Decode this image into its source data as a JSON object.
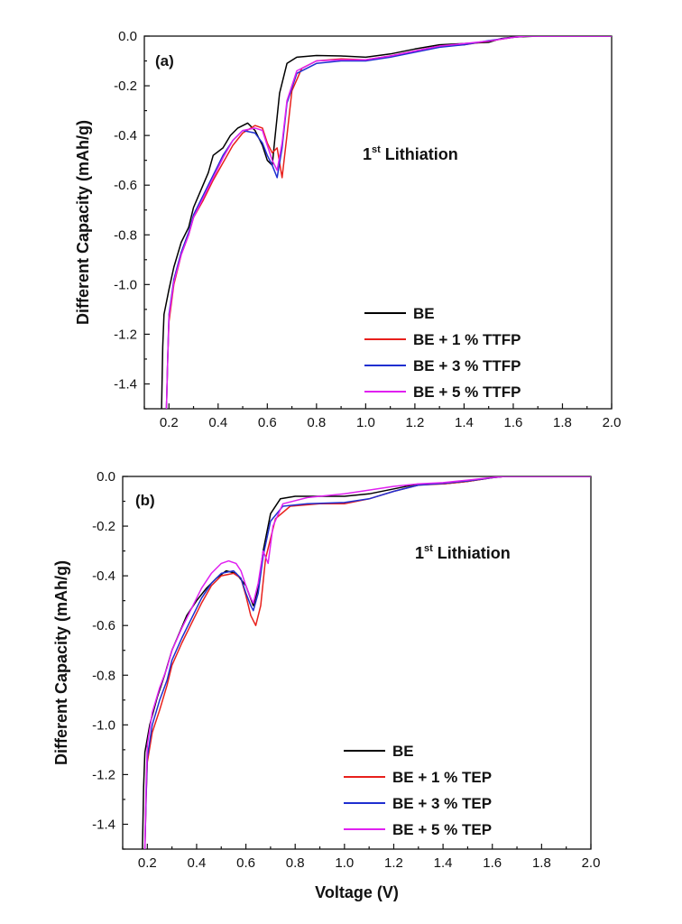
{
  "colors": {
    "BE": "#000000",
    "BE_1": "#e8201c",
    "BE_3": "#1f2fd0",
    "BE_5": "#e020f0"
  },
  "chart_data": [
    {
      "type": "line",
      "panel_label": "(a)",
      "annotation": {
        "main": "1",
        "sup": "st",
        "rest": " Lithiation"
      },
      "xlabel": "",
      "ylabel": "Different Capacity (mAh/g)",
      "xlim": [
        0.1,
        2.0
      ],
      "ylim": [
        -1.5,
        0.0
      ],
      "x_ticks": [
        "0.2",
        "0.4",
        "0.6",
        "0.8",
        "1.0",
        "1.2",
        "1.4",
        "1.6",
        "1.8",
        "2.0"
      ],
      "y_ticks": [
        "0.0",
        "-0.2",
        "-0.4",
        "-0.6",
        "-0.8",
        "-1.0",
        "-1.2",
        "-1.4"
      ],
      "legend_position": "lower-right",
      "series": [
        {
          "name": "BE",
          "color_key": "BE",
          "points": [
            [
              0.17,
              -1.5
            ],
            [
              0.175,
              -1.25
            ],
            [
              0.18,
              -1.12
            ],
            [
              0.2,
              -1.02
            ],
            [
              0.22,
              -0.93
            ],
            [
              0.25,
              -0.83
            ],
            [
              0.28,
              -0.77
            ],
            [
              0.3,
              -0.69
            ],
            [
              0.33,
              -0.62
            ],
            [
              0.36,
              -0.55
            ],
            [
              0.38,
              -0.48
            ],
            [
              0.42,
              -0.45
            ],
            [
              0.45,
              -0.4
            ],
            [
              0.48,
              -0.37
            ],
            [
              0.52,
              -0.35
            ],
            [
              0.55,
              -0.38
            ],
            [
              0.58,
              -0.44
            ],
            [
              0.6,
              -0.5
            ],
            [
              0.62,
              -0.52
            ],
            [
              0.63,
              -0.42
            ],
            [
              0.65,
              -0.23
            ],
            [
              0.68,
              -0.11
            ],
            [
              0.72,
              -0.085
            ],
            [
              0.8,
              -0.078
            ],
            [
              0.9,
              -0.08
            ],
            [
              1.0,
              -0.085
            ],
            [
              1.1,
              -0.072
            ],
            [
              1.2,
              -0.052
            ],
            [
              1.3,
              -0.035
            ],
            [
              1.4,
              -0.03
            ],
            [
              1.5,
              -0.025
            ],
            [
              1.55,
              -0.01
            ],
            [
              1.6,
              -0.004
            ],
            [
              1.7,
              0.0
            ],
            [
              2.0,
              0.0
            ]
          ]
        },
        {
          "name": "BE + 1 % TTFP",
          "color_key": "BE_1",
          "points": [
            [
              0.19,
              -1.5
            ],
            [
              0.195,
              -1.3
            ],
            [
              0.2,
              -1.15
            ],
            [
              0.22,
              -1.0
            ],
            [
              0.25,
              -0.88
            ],
            [
              0.28,
              -0.8
            ],
            [
              0.3,
              -0.73
            ],
            [
              0.34,
              -0.66
            ],
            [
              0.38,
              -0.58
            ],
            [
              0.42,
              -0.51
            ],
            [
              0.46,
              -0.44
            ],
            [
              0.5,
              -0.39
            ],
            [
              0.55,
              -0.36
            ],
            [
              0.58,
              -0.37
            ],
            [
              0.6,
              -0.43
            ],
            [
              0.62,
              -0.47
            ],
            [
              0.64,
              -0.45
            ],
            [
              0.66,
              -0.57
            ],
            [
              0.68,
              -0.4
            ],
            [
              0.7,
              -0.22
            ],
            [
              0.74,
              -0.13
            ],
            [
              0.8,
              -0.1
            ],
            [
              0.9,
              -0.092
            ],
            [
              1.0,
              -0.095
            ],
            [
              1.1,
              -0.08
            ],
            [
              1.2,
              -0.06
            ],
            [
              1.3,
              -0.04
            ],
            [
              1.4,
              -0.035
            ],
            [
              1.5,
              -0.02
            ],
            [
              1.6,
              -0.005
            ],
            [
              1.65,
              0.0
            ],
            [
              2.0,
              0.0
            ]
          ]
        },
        {
          "name": "BE + 3 % TTFP",
          "color_key": "BE_3",
          "points": [
            [
              0.19,
              -1.5
            ],
            [
              0.195,
              -1.3
            ],
            [
              0.2,
              -1.12
            ],
            [
              0.22,
              -0.98
            ],
            [
              0.25,
              -0.87
            ],
            [
              0.28,
              -0.79
            ],
            [
              0.3,
              -0.72
            ],
            [
              0.34,
              -0.64
            ],
            [
              0.38,
              -0.56
            ],
            [
              0.42,
              -0.48
            ],
            [
              0.46,
              -0.42
            ],
            [
              0.5,
              -0.38
            ],
            [
              0.55,
              -0.39
            ],
            [
              0.58,
              -0.43
            ],
            [
              0.6,
              -0.48
            ],
            [
              0.62,
              -0.52
            ],
            [
              0.64,
              -0.57
            ],
            [
              0.66,
              -0.45
            ],
            [
              0.68,
              -0.27
            ],
            [
              0.72,
              -0.15
            ],
            [
              0.8,
              -0.11
            ],
            [
              0.9,
              -0.1
            ],
            [
              1.0,
              -0.1
            ],
            [
              1.1,
              -0.085
            ],
            [
              1.2,
              -0.065
            ],
            [
              1.3,
              -0.045
            ],
            [
              1.4,
              -0.035
            ],
            [
              1.5,
              -0.018
            ],
            [
              1.6,
              -0.005
            ],
            [
              1.65,
              0.0
            ],
            [
              2.0,
              0.0
            ]
          ]
        },
        {
          "name": "BE + 5 % TTFP",
          "color_key": "BE_5",
          "points": [
            [
              0.19,
              -1.5
            ],
            [
              0.195,
              -1.3
            ],
            [
              0.2,
              -1.13
            ],
            [
              0.22,
              -0.99
            ],
            [
              0.25,
              -0.88
            ],
            [
              0.28,
              -0.8
            ],
            [
              0.3,
              -0.73
            ],
            [
              0.34,
              -0.65
            ],
            [
              0.38,
              -0.57
            ],
            [
              0.42,
              -0.49
            ],
            [
              0.46,
              -0.42
            ],
            [
              0.5,
              -0.38
            ],
            [
              0.55,
              -0.37
            ],
            [
              0.58,
              -0.38
            ],
            [
              0.6,
              -0.44
            ],
            [
              0.62,
              -0.5
            ],
            [
              0.64,
              -0.54
            ],
            [
              0.66,
              -0.43
            ],
            [
              0.68,
              -0.26
            ],
            [
              0.72,
              -0.14
            ],
            [
              0.8,
              -0.1
            ],
            [
              0.9,
              -0.095
            ],
            [
              1.0,
              -0.095
            ],
            [
              1.1,
              -0.08
            ],
            [
              1.2,
              -0.06
            ],
            [
              1.3,
              -0.04
            ],
            [
              1.4,
              -0.03
            ],
            [
              1.5,
              -0.02
            ],
            [
              1.6,
              -0.005
            ],
            [
              1.65,
              0.0
            ],
            [
              2.0,
              0.0
            ]
          ]
        }
      ]
    },
    {
      "type": "line",
      "panel_label": "(b)",
      "annotation": {
        "main": "1",
        "sup": "st",
        "rest": " Lithiation"
      },
      "xlabel": "Voltage (V)",
      "ylabel": "Different Capacity (mAh/g)",
      "xlim": [
        0.1,
        2.0
      ],
      "ylim": [
        -1.5,
        0.0
      ],
      "x_ticks": [
        "0.2",
        "0.4",
        "0.6",
        "0.8",
        "1.0",
        "1.2",
        "1.4",
        "1.6",
        "1.8",
        "2.0"
      ],
      "y_ticks": [
        "0.0",
        "-0.2",
        "-0.4",
        "-0.6",
        "-0.8",
        "-1.0",
        "-1.2",
        "-1.4"
      ],
      "legend_position": "lower-right",
      "series": [
        {
          "name": "BE",
          "color_key": "BE",
          "points": [
            [
              0.18,
              -1.5
            ],
            [
              0.185,
              -1.25
            ],
            [
              0.19,
              -1.11
            ],
            [
              0.21,
              -1.0
            ],
            [
              0.24,
              -0.89
            ],
            [
              0.27,
              -0.8
            ],
            [
              0.3,
              -0.7
            ],
            [
              0.33,
              -0.63
            ],
            [
              0.36,
              -0.56
            ],
            [
              0.4,
              -0.5
            ],
            [
              0.44,
              -0.45
            ],
            [
              0.48,
              -0.41
            ],
            [
              0.52,
              -0.38
            ],
            [
              0.56,
              -0.39
            ],
            [
              0.6,
              -0.44
            ],
            [
              0.63,
              -0.52
            ],
            [
              0.65,
              -0.45
            ],
            [
              0.67,
              -0.3
            ],
            [
              0.7,
              -0.15
            ],
            [
              0.74,
              -0.09
            ],
            [
              0.8,
              -0.08
            ],
            [
              0.9,
              -0.08
            ],
            [
              1.0,
              -0.08
            ],
            [
              1.1,
              -0.07
            ],
            [
              1.2,
              -0.05
            ],
            [
              1.3,
              -0.03
            ],
            [
              1.4,
              -0.03
            ],
            [
              1.5,
              -0.02
            ],
            [
              1.6,
              -0.005
            ],
            [
              1.65,
              0.0
            ],
            [
              2.0,
              0.0
            ]
          ]
        },
        {
          "name": "BE + 1 % TEP",
          "color_key": "BE_1",
          "points": [
            [
              0.19,
              -1.5
            ],
            [
              0.195,
              -1.3
            ],
            [
              0.2,
              -1.15
            ],
            [
              0.22,
              -1.03
            ],
            [
              0.25,
              -0.94
            ],
            [
              0.28,
              -0.84
            ],
            [
              0.3,
              -0.76
            ],
            [
              0.34,
              -0.67
            ],
            [
              0.38,
              -0.59
            ],
            [
              0.42,
              -0.51
            ],
            [
              0.46,
              -0.44
            ],
            [
              0.5,
              -0.4
            ],
            [
              0.55,
              -0.39
            ],
            [
              0.58,
              -0.41
            ],
            [
              0.6,
              -0.48
            ],
            [
              0.62,
              -0.56
            ],
            [
              0.64,
              -0.6
            ],
            [
              0.66,
              -0.52
            ],
            [
              0.68,
              -0.33
            ],
            [
              0.72,
              -0.17
            ],
            [
              0.78,
              -0.12
            ],
            [
              0.9,
              -0.11
            ],
            [
              1.0,
              -0.11
            ],
            [
              1.1,
              -0.09
            ],
            [
              1.2,
              -0.06
            ],
            [
              1.3,
              -0.035
            ],
            [
              1.4,
              -0.03
            ],
            [
              1.5,
              -0.02
            ],
            [
              1.6,
              -0.005
            ],
            [
              1.65,
              0.0
            ],
            [
              2.0,
              0.0
            ]
          ]
        },
        {
          "name": "BE + 3 % TEP",
          "color_key": "BE_3",
          "points": [
            [
              0.19,
              -1.5
            ],
            [
              0.195,
              -1.3
            ],
            [
              0.2,
              -1.13
            ],
            [
              0.22,
              -1.0
            ],
            [
              0.25,
              -0.9
            ],
            [
              0.28,
              -0.82
            ],
            [
              0.3,
              -0.74
            ],
            [
              0.34,
              -0.65
            ],
            [
              0.38,
              -0.57
            ],
            [
              0.42,
              -0.49
            ],
            [
              0.46,
              -0.43
            ],
            [
              0.5,
              -0.39
            ],
            [
              0.55,
              -0.38
            ],
            [
              0.58,
              -0.41
            ],
            [
              0.6,
              -0.47
            ],
            [
              0.62,
              -0.52
            ],
            [
              0.63,
              -0.54
            ],
            [
              0.65,
              -0.47
            ],
            [
              0.67,
              -0.32
            ],
            [
              0.7,
              -0.18
            ],
            [
              0.75,
              -0.12
            ],
            [
              0.85,
              -0.11
            ],
            [
              1.0,
              -0.105
            ],
            [
              1.1,
              -0.09
            ],
            [
              1.2,
              -0.06
            ],
            [
              1.3,
              -0.035
            ],
            [
              1.4,
              -0.028
            ],
            [
              1.5,
              -0.018
            ],
            [
              1.6,
              -0.005
            ],
            [
              1.65,
              0.0
            ],
            [
              2.0,
              0.0
            ]
          ]
        },
        {
          "name": "BE + 5 % TEP",
          "color_key": "BE_5",
          "points": [
            [
              0.19,
              -1.5
            ],
            [
              0.195,
              -1.25
            ],
            [
              0.2,
              -1.08
            ],
            [
              0.22,
              -0.95
            ],
            [
              0.25,
              -0.85
            ],
            [
              0.28,
              -0.77
            ],
            [
              0.3,
              -0.7
            ],
            [
              0.34,
              -0.61
            ],
            [
              0.38,
              -0.53
            ],
            [
              0.42,
              -0.45
            ],
            [
              0.46,
              -0.39
            ],
            [
              0.5,
              -0.35
            ],
            [
              0.53,
              -0.34
            ],
            [
              0.56,
              -0.35
            ],
            [
              0.58,
              -0.38
            ],
            [
              0.6,
              -0.44
            ],
            [
              0.62,
              -0.49
            ],
            [
              0.63,
              -0.51
            ],
            [
              0.65,
              -0.43
            ],
            [
              0.67,
              -0.3
            ],
            [
              0.69,
              -0.35
            ],
            [
              0.71,
              -0.2
            ],
            [
              0.75,
              -0.11
            ],
            [
              0.85,
              -0.085
            ],
            [
              1.0,
              -0.07
            ],
            [
              1.1,
              -0.055
            ],
            [
              1.2,
              -0.04
            ],
            [
              1.3,
              -0.03
            ],
            [
              1.4,
              -0.025
            ],
            [
              1.5,
              -0.015
            ],
            [
              1.6,
              -0.004
            ],
            [
              1.65,
              0.0
            ],
            [
              2.0,
              0.0
            ]
          ]
        }
      ]
    }
  ]
}
